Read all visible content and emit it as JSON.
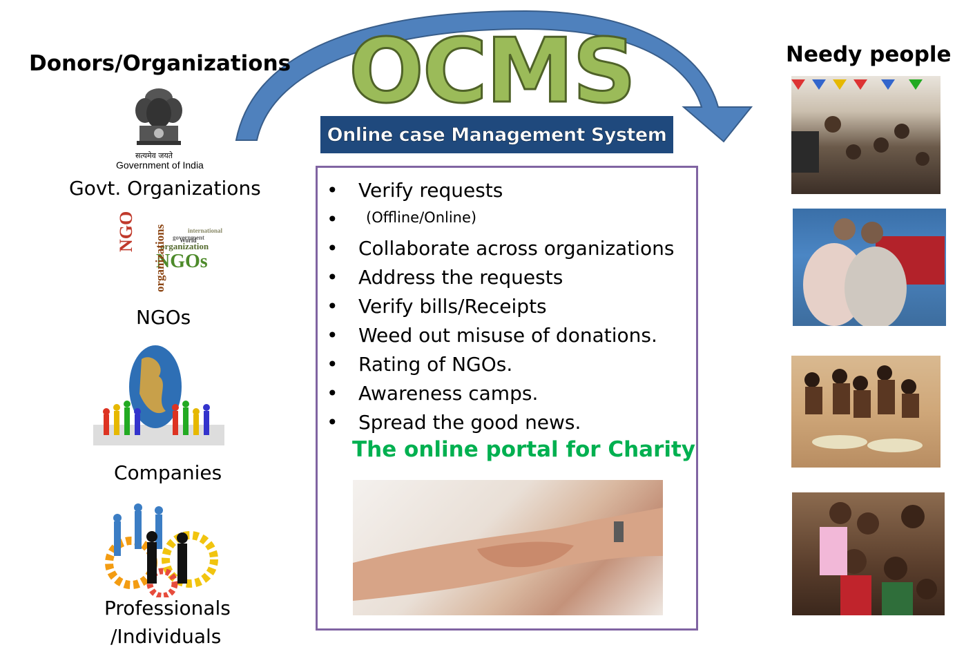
{
  "title": "OCMS",
  "subtitle": "Online case Management System",
  "left_header": "Donors/Organizations",
  "right_header": "Needy people",
  "donors": {
    "emblem_caption_hindi": "सत्यमेव जयते",
    "emblem_caption": "Government of India",
    "govt_label": "Govt. Organizations",
    "ngo_label": "NGOs",
    "ngo_cloud_words": [
      "NGO",
      "NGOs",
      "organization",
      "organizations",
      "government",
      "international",
      "World"
    ],
    "companies_label": "Companies",
    "professionals_label_1": "Professionals",
    "professionals_label_2": "/Individuals"
  },
  "features": [
    "Verify requests",
    "Collaborate across organizations",
    "Address the requests",
    "Verify bills/Receipts",
    "Weed out misuse of donations.",
    "Rating of NGOs.",
    "Awareness camps.",
    "Spread the good news."
  ],
  "feature_note": "(Offline/Online)",
  "tagline": "The online portal for Charity",
  "colors": {
    "ocms_green": "#9bbb59",
    "banner_blue": "#1f497d",
    "arrow_blue": "#4a7ebb",
    "box_border": "#8064a2",
    "tagline_green": "#00b050"
  }
}
